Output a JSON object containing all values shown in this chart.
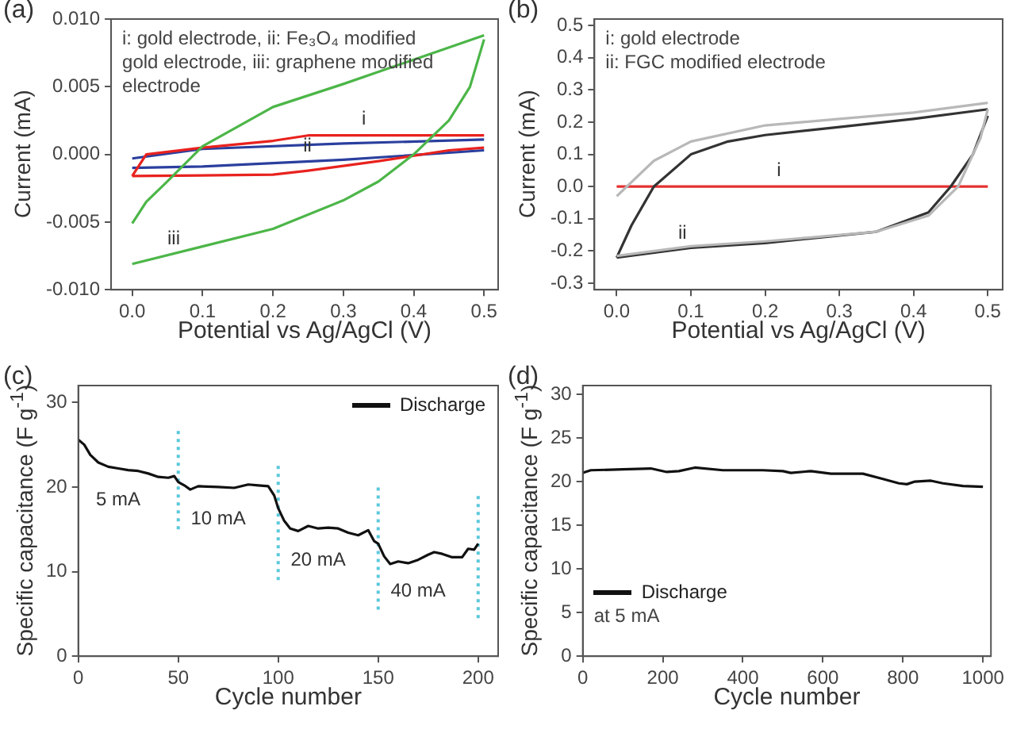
{
  "chart_data": [
    {
      "type": "line",
      "title": "(a)",
      "xlabel": "Potential vs Ag/AgCl (V)",
      "ylabel": "Current (mA)",
      "marker": "none",
      "grid": false,
      "xlim": [
        -0.03,
        0.52
      ],
      "xticks": [
        {
          "value": 0,
          "label": "0.0"
        },
        0.1,
        0.2,
        0.3,
        0.4,
        0.5
      ],
      "ylim": [
        -0.01,
        0.01
      ],
      "yticks": [
        {
          "value": -0.01,
          "label": "-0.010"
        },
        -0.005,
        {
          "value": 0,
          "label": "0.000"
        },
        0.005,
        {
          "value": 0.01,
          "label": "0.010"
        }
      ],
      "series": [
        {
          "color": "#4cb648",
          "x": [
            0,
            0.02,
            0.05,
            0.1,
            0.2,
            0.3,
            0.4,
            0.5
          ],
          "values": [
            -0.0051,
            -0.0035,
            -0.002,
            0.0006,
            0.0035,
            0.0052,
            0.007,
            0.0088
          ]
        },
        {
          "color": "#4cb648",
          "x": [
            0,
            0.1,
            0.2,
            0.3,
            0.35,
            0.4,
            0.45,
            0.48,
            0.5
          ],
          "values": [
            -0.0081,
            -0.0068,
            -0.0055,
            -0.0034,
            -0.002,
            0,
            0.0025,
            0.005,
            0.0085
          ]
        },
        {
          "color": "#e8221e",
          "x": [
            0,
            0.02,
            0.1,
            0.2,
            0.25,
            0.5
          ],
          "values": [
            -0.0016,
            0,
            0.0005,
            0.001,
            0.0014,
            0.0014
          ]
        },
        {
          "color": "#e8221e",
          "x": [
            0,
            0.2,
            0.25,
            0.35,
            0.45,
            0.5
          ],
          "values": [
            -0.0016,
            -0.0015,
            -0.0012,
            -0.0005,
            0.0003,
            0.0005
          ]
        },
        {
          "color": "#2a3f9e",
          "x": [
            0,
            0.1,
            0.3,
            0.5
          ],
          "values": [
            -0.0003,
            0.0004,
            0.0008,
            0.0011
          ]
        },
        {
          "color": "#2a3f9e",
          "x": [
            0,
            0.1,
            0.3,
            0.5
          ],
          "values": [
            -0.001,
            -0.0009,
            -0.0004,
            0.0003
          ]
        }
      ],
      "annotations": [
        "i: gold electrode,  ii: Fe₃O₄ modified gold electrode, iii: graphene modified electrode",
        {
          "text": "i",
          "x": 0.32,
          "y": 0.0014
        },
        {
          "text": "ii",
          "x": 0.24,
          "y": -0.00055
        },
        {
          "text": "iii",
          "x": 0.05,
          "y": -0.00745
        }
      ]
    },
    {
      "type": "line",
      "title": "(b)",
      "xlabel": "Potential vs Ag/AgCl (V)",
      "ylabel": "Current (mA)",
      "marker": "none",
      "grid": false,
      "xlim": [
        -0.03,
        0.52
      ],
      "xticks": [
        {
          "value": 0,
          "label": "0.0"
        },
        0.1,
        0.2,
        0.3,
        0.4,
        0.5
      ],
      "ylim": [
        -0.32,
        0.52
      ],
      "yticks": [
        -0.3,
        -0.2,
        -0.1,
        {
          "value": 0,
          "label": "0.0"
        },
        0.1,
        0.2,
        0.3,
        0.4,
        0.5
      ],
      "series": [
        {
          "color": "#b8b8b8",
          "x": [
            0,
            0.05,
            0.1,
            0.2,
            0.3,
            0.4,
            0.5
          ],
          "values": [
            -0.03,
            0.08,
            0.14,
            0.19,
            0.21,
            0.23,
            0.26
          ]
        },
        {
          "color": "#b8b8b8",
          "x": [
            0,
            0.1,
            0.2,
            0.35,
            0.42,
            0.46,
            0.49,
            0.5
          ],
          "values": [
            -0.215,
            -0.185,
            -0.17,
            -0.14,
            -0.09,
            0,
            0.15,
            0.24
          ]
        },
        {
          "color": "#333333",
          "x": [
            0,
            0.02,
            0.05,
            0.1,
            0.15,
            0.2,
            0.3,
            0.4,
            0.5
          ],
          "values": [
            -0.22,
            -0.12,
            0,
            0.1,
            0.14,
            0.16,
            0.185,
            0.21,
            0.24
          ]
        },
        {
          "color": "#333333",
          "x": [
            0,
            0.1,
            0.2,
            0.35,
            0.42,
            0.45,
            0.48,
            0.5
          ],
          "values": [
            -0.22,
            -0.19,
            -0.175,
            -0.14,
            -0.08,
            0,
            0.1,
            0.22
          ]
        },
        {
          "color": "#e53030",
          "x": [
            0,
            0.5
          ],
          "values": [
            0,
            0
          ]
        }
      ],
      "annotations": [
        "i: gold electrode",
        "ii: FGC modified electrode",
        {
          "text": "i",
          "x": 0.21,
          "y": 0
        },
        {
          "text": "ii",
          "x": 0.08,
          "y": -0.196
        }
      ]
    },
    {
      "type": "line",
      "title": "(c)",
      "xlabel": "Cycle number",
      "ylabel": "Specific capacitance (F g$^{-1}$)",
      "marker": "none",
      "grid": false,
      "legend": "top right",
      "xlim": [
        0,
        210
      ],
      "xticks": [
        0,
        50,
        100,
        150,
        200
      ],
      "ylim": [
        0,
        32
      ],
      "yticks": [
        0,
        10,
        20,
        30
      ],
      "series": [
        {
          "name": "Discharge",
          "color": "#111111",
          "x": [
            0,
            3,
            6,
            10,
            15,
            20,
            25,
            30,
            35,
            40,
            45,
            48,
            50,
            53,
            56,
            60,
            70,
            78,
            85,
            90,
            95,
            98,
            100,
            103,
            106,
            110,
            115,
            120,
            125,
            130,
            135,
            140,
            145,
            148,
            150,
            153,
            156,
            160,
            165,
            170,
            175,
            178,
            182,
            187,
            192,
            195,
            198,
            200
          ],
          "values": [
            25.6,
            25,
            23.8,
            22.9,
            22.4,
            22.2,
            22,
            21.9,
            21.6,
            21.2,
            21.1,
            21.3,
            20.6,
            20.2,
            19.7,
            20.1,
            20,
            19.9,
            20.3,
            20.2,
            20.1,
            19,
            17.5,
            16,
            15.1,
            14.8,
            15.4,
            15.1,
            15.2,
            15.1,
            14.6,
            14.3,
            14.9,
            13.6,
            13.3,
            11.8,
            10.9,
            11.2,
            11,
            11.4,
            12,
            12.3,
            12.1,
            11.7,
            11.7,
            12.7,
            12.6,
            13.3
          ]
        },
        {
          "color": "#5bc8dc",
          "line_style": "dotted",
          "x": [
            50,
            50
          ],
          "values": [
            15,
            27
          ]
        },
        {
          "color": "#5bc8dc",
          "line_style": "dotted",
          "x": [
            100,
            100
          ],
          "values": [
            9,
            22.5
          ]
        },
        {
          "color": "#5bc8dc",
          "line_style": "dotted",
          "x": [
            150,
            150
          ],
          "values": [
            5.5,
            20
          ]
        },
        {
          "color": "#5bc8dc",
          "line_style": "dotted",
          "x": [
            200,
            200
          ],
          "values": [
            4.5,
            19.5
          ]
        }
      ],
      "annotations": [
        {
          "text": "5 mA",
          "x": 20,
          "y": 22.2
        },
        {
          "text": "10 mA",
          "x": 70,
          "y": 20
        },
        {
          "text": "20 mA",
          "x": 120,
          "y": 15.1
        },
        {
          "text": "40 mA",
          "x": 170,
          "y": 11.4
        }
      ]
    },
    {
      "type": "line",
      "title": "(d)",
      "xlabel": "Cycle number",
      "ylabel": "Specific capacitance (F g$^{-1}$)",
      "marker": "none",
      "grid": false,
      "legend": "bottom left",
      "xlim": [
        0,
        1020
      ],
      "xticks": [
        0,
        200,
        400,
        600,
        800,
        1000
      ],
      "ylim": [
        0,
        31
      ],
      "yticks": [
        0,
        5,
        10,
        15,
        20,
        25,
        30
      ],
      "series": [
        {
          "name": "Discharge",
          "color": "#111111",
          "x": [
            0,
            20,
            100,
            170,
            210,
            240,
            280,
            350,
            450,
            500,
            520,
            570,
            620,
            700,
            750,
            790,
            810,
            830,
            870,
            900,
            950,
            1000
          ],
          "values": [
            21,
            21.3,
            21.4,
            21.5,
            21.1,
            21.2,
            21.6,
            21.3,
            21.3,
            21.2,
            21,
            21.2,
            20.9,
            20.9,
            20.3,
            19.8,
            19.7,
            20,
            20.1,
            19.8,
            19.5,
            19.4
          ]
        }
      ],
      "annotations": [
        "at 5 mA"
      ]
    }
  ]
}
